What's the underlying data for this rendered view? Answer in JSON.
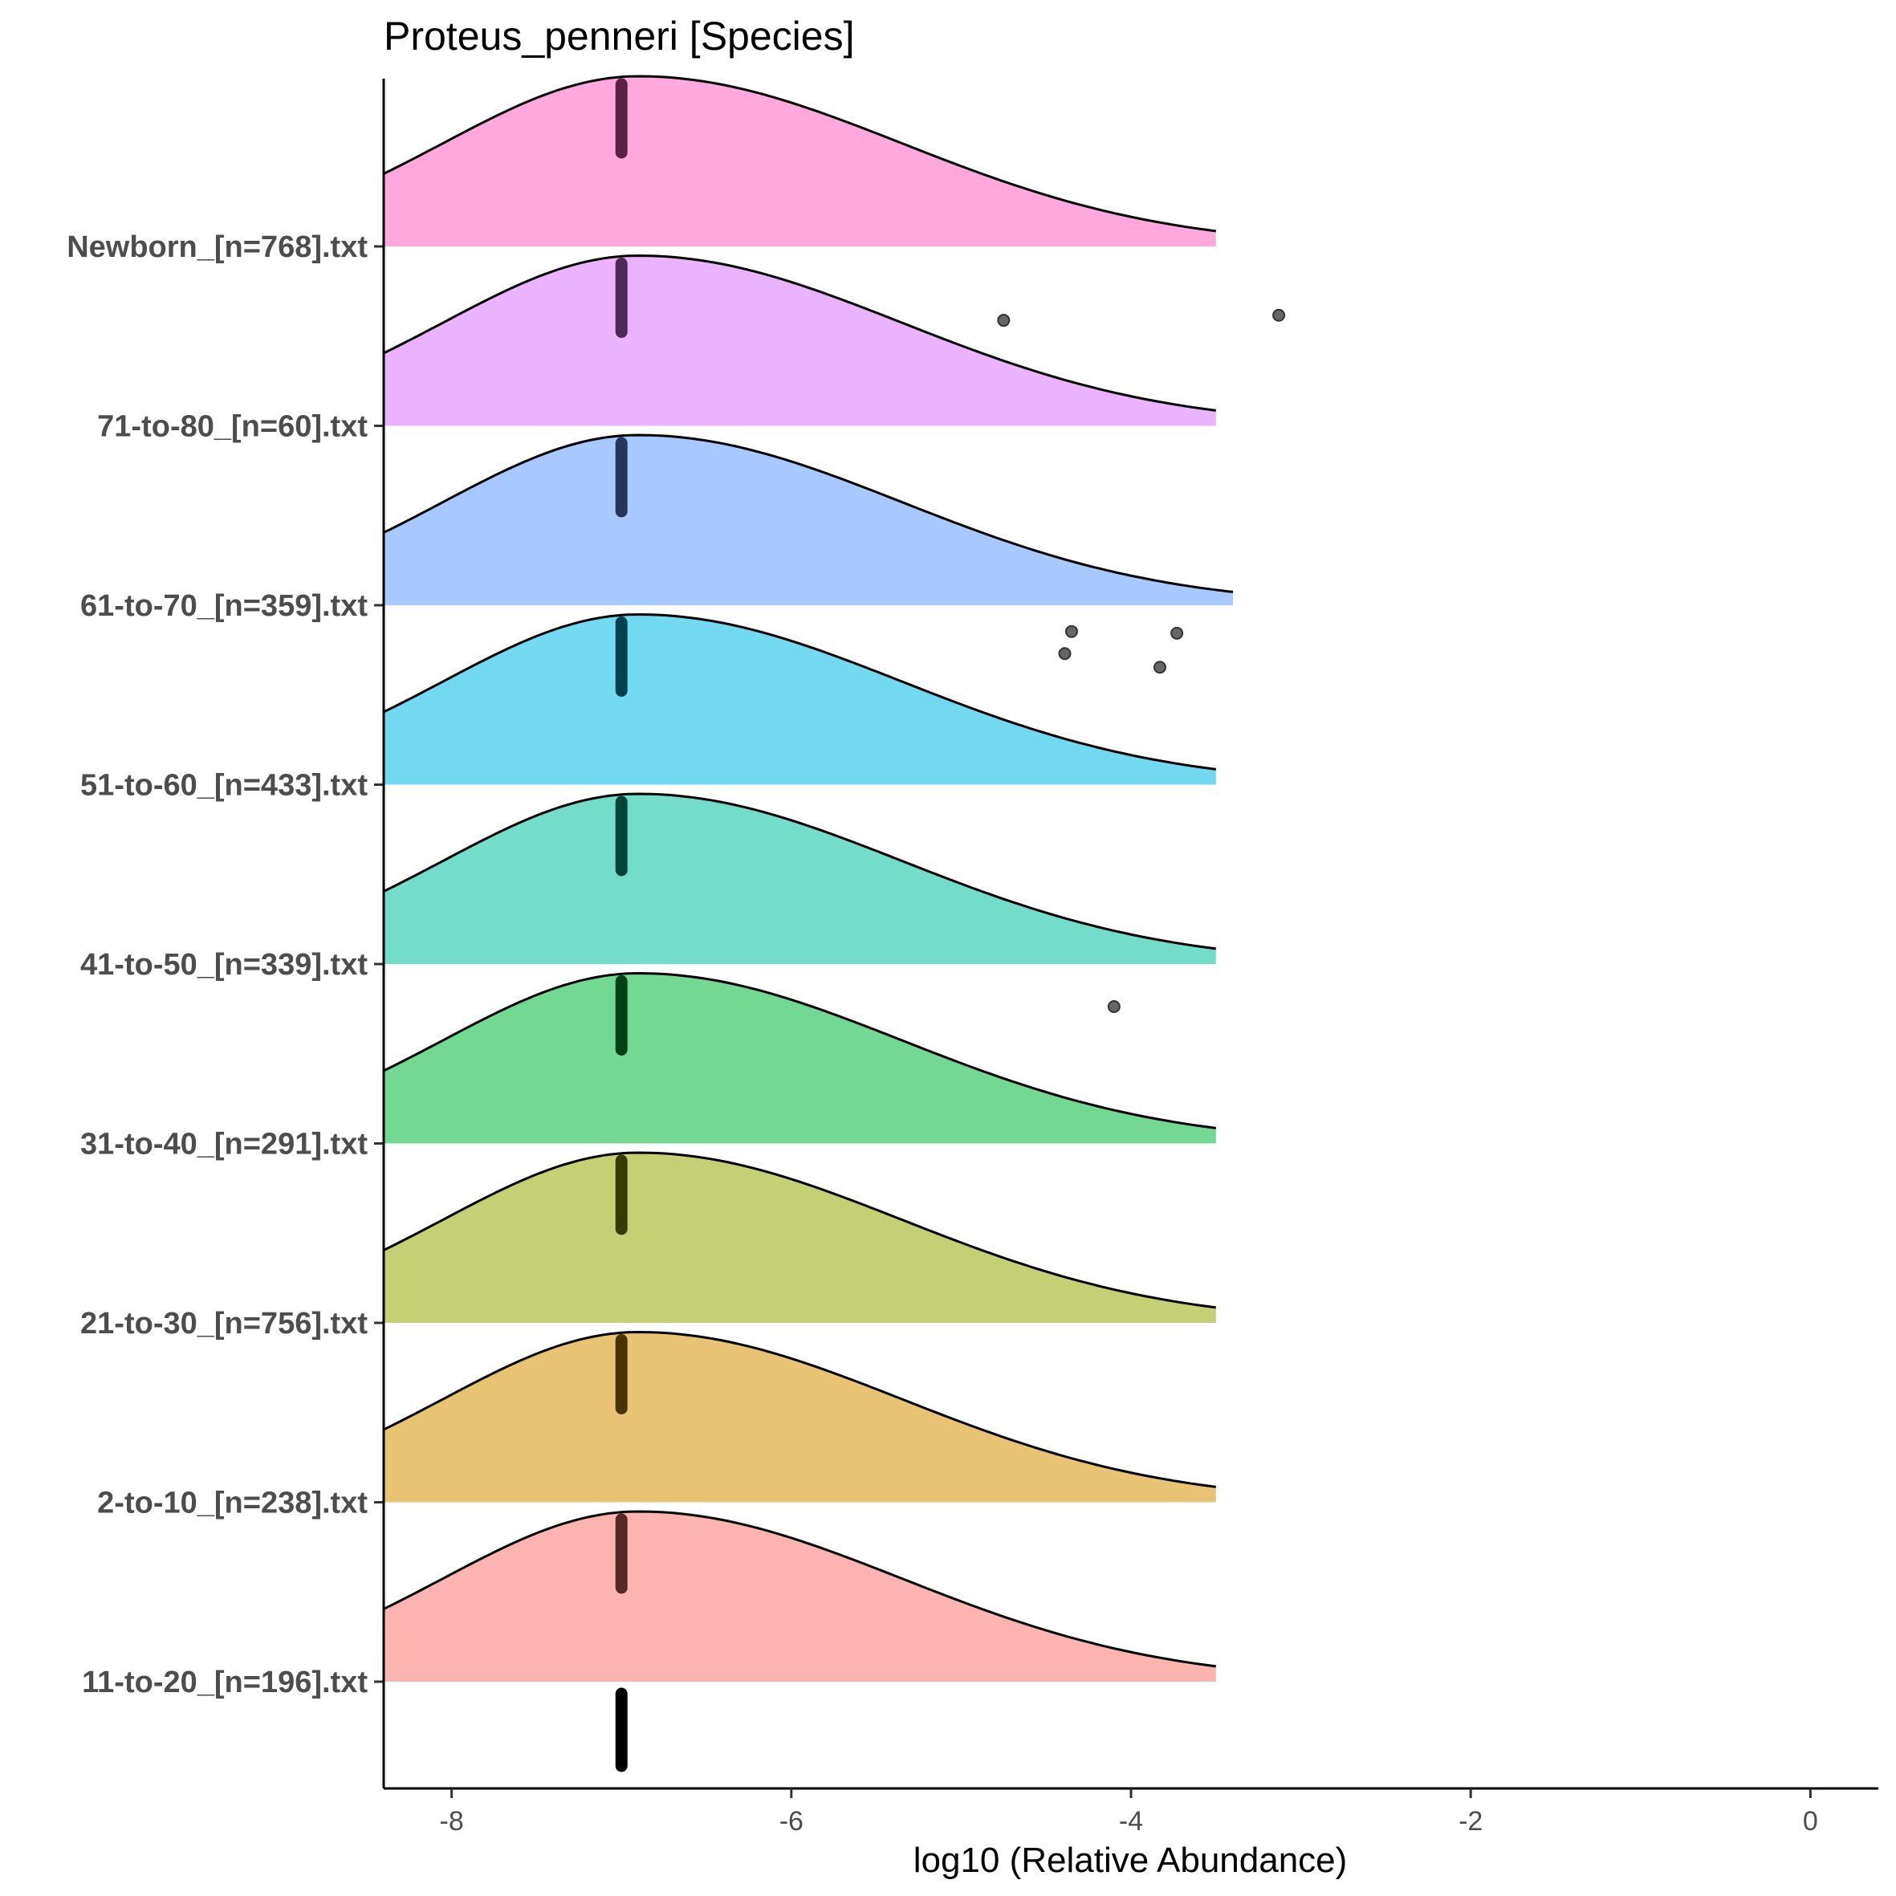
{
  "chart_data": {
    "type": "ridgeline",
    "title": "Proteus_penneri [Species]",
    "xlabel": "log10 (Relative Abundance)",
    "ylabel": "",
    "xlim": [
      -8.4,
      0.4
    ],
    "x_ticks": [
      -8,
      -6,
      -4,
      -2,
      0
    ],
    "x_tick_labels": [
      "-8",
      "-6",
      "-4",
      "-2",
      "0"
    ],
    "grid": false,
    "legend": "none",
    "categories": [
      "11-to-20_[n=196].txt",
      "2-to-10_[n=238].txt",
      "21-to-30_[n=756].txt",
      "31-to-40_[n=291].txt",
      "41-to-50_[n=339].txt",
      "51-to-60_[n=433].txt",
      "61-to-70_[n=359].txt",
      "71-to-80_[n=60].txt",
      "Newborn_[n=768].txt"
    ],
    "series": [
      {
        "category": "11-to-20_[n=196].txt",
        "color": "#F8766D",
        "median": -7.0,
        "density_peak_x": -6.9,
        "density_end_x": -3.5,
        "outliers": []
      },
      {
        "category": "2-to-10_[n=238].txt",
        "color": "#D39200",
        "median": -7.0,
        "density_peak_x": -6.9,
        "density_end_x": -3.5,
        "outliers": []
      },
      {
        "category": "21-to-30_[n=756].txt",
        "color": "#93AA00",
        "median": -7.0,
        "density_peak_x": -6.9,
        "density_end_x": -3.5,
        "outliers": []
      },
      {
        "category": "31-to-40_[n=291].txt",
        "color": "#00BA38",
        "median": -7.0,
        "density_peak_x": -6.9,
        "density_end_x": -3.5,
        "outliers": []
      },
      {
        "category": "41-to-50_[n=339].txt",
        "color": "#00C19F",
        "median": -7.0,
        "density_peak_x": -6.9,
        "density_end_x": -3.5,
        "outliers": [
          {
            "x": -4.1,
            "offset": -0.25
          }
        ]
      },
      {
        "category": "51-to-60_[n=433].txt",
        "color": "#00B9E3",
        "median": -7.0,
        "density_peak_x": -6.9,
        "density_end_x": -3.5,
        "outliers": [
          {
            "x": -4.35,
            "offset": 0.9
          },
          {
            "x": -4.39,
            "offset": 0.77
          },
          {
            "x": -3.73,
            "offset": 0.89
          },
          {
            "x": -3.83,
            "offset": 0.69
          }
        ]
      },
      {
        "category": "61-to-70_[n=359].txt",
        "color": "#619CFF",
        "median": -7.0,
        "density_peak_x": -6.9,
        "density_end_x": -3.4,
        "outliers": []
      },
      {
        "category": "71-to-80_[n=60].txt",
        "color": "#DB72FB",
        "median": -7.0,
        "density_peak_x": -6.9,
        "density_end_x": -3.5,
        "outliers": [
          {
            "x": -4.75,
            "offset": 0.62
          },
          {
            "x": -3.13,
            "offset": 0.65
          }
        ]
      },
      {
        "category": "Newborn_[n=768].txt",
        "color": "#FF61C3",
        "median": -7.0,
        "density_peak_x": -6.9,
        "density_end_x": -3.5,
        "outliers": []
      }
    ]
  }
}
